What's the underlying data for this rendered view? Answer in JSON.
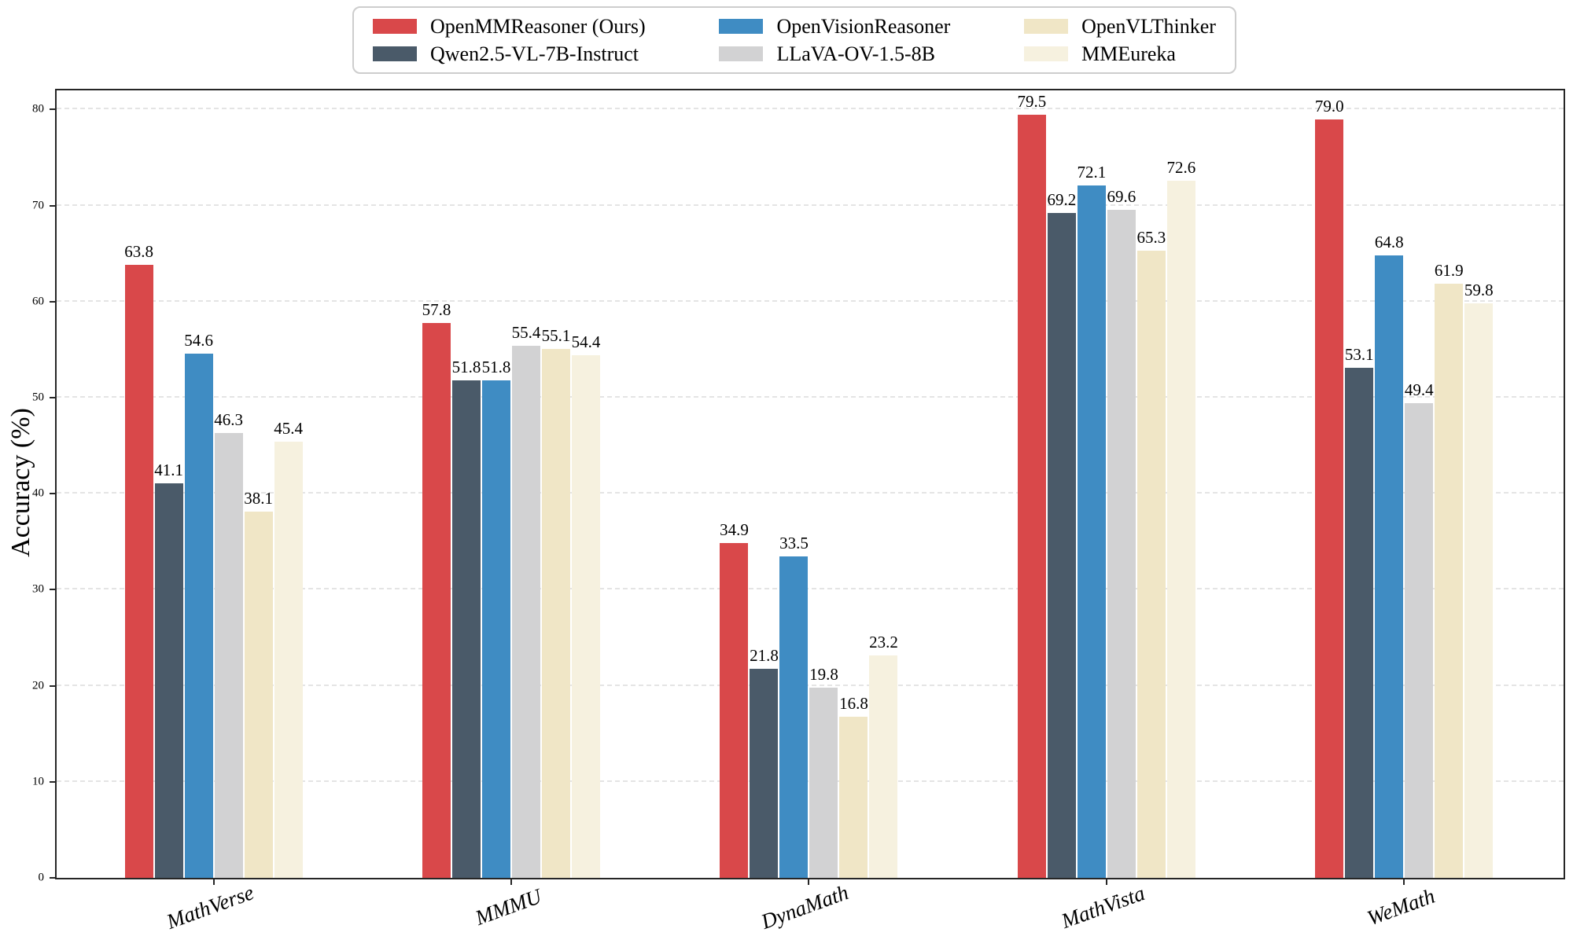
{
  "chart_data": {
    "type": "bar",
    "title": "",
    "xlabel": "",
    "ylabel": "Accuracy (%)",
    "ylim": [
      0,
      82
    ],
    "yticks": [
      0,
      10,
      20,
      30,
      40,
      50,
      60,
      70,
      80
    ],
    "grid": "horizontal-dashed",
    "legend_position": "top-center",
    "legend_ncols": 3,
    "categories": [
      "MathVerse",
      "MMMU",
      "DynaMath",
      "MathVista",
      "WeMath"
    ],
    "series": [
      {
        "name": "OpenMMReasoner (Ours)",
        "color": "#d9484a",
        "values": [
          63.8,
          57.8,
          34.9,
          79.5,
          79.0
        ]
      },
      {
        "name": "Qwen2.5-VL-7B-Instruct",
        "color": "#4a5a69",
        "values": [
          41.1,
          51.8,
          21.8,
          69.2,
          53.1
        ]
      },
      {
        "name": "OpenVisionReasoner",
        "color": "#3f8cc3",
        "values": [
          54.6,
          51.8,
          33.5,
          72.1,
          64.8
        ]
      },
      {
        "name": "LLaVA-OV-1.5-8B",
        "color": "#d2d2d3",
        "values": [
          46.3,
          55.4,
          19.8,
          69.6,
          49.4
        ]
      },
      {
        "name": "OpenVLThinker",
        "color": "#f0e6c6",
        "values": [
          38.1,
          55.1,
          16.8,
          65.3,
          61.9
        ]
      },
      {
        "name": "MMEureka",
        "color": "#f6f1df",
        "values": [
          45.4,
          54.4,
          23.2,
          72.6,
          59.8
        ]
      }
    ]
  }
}
